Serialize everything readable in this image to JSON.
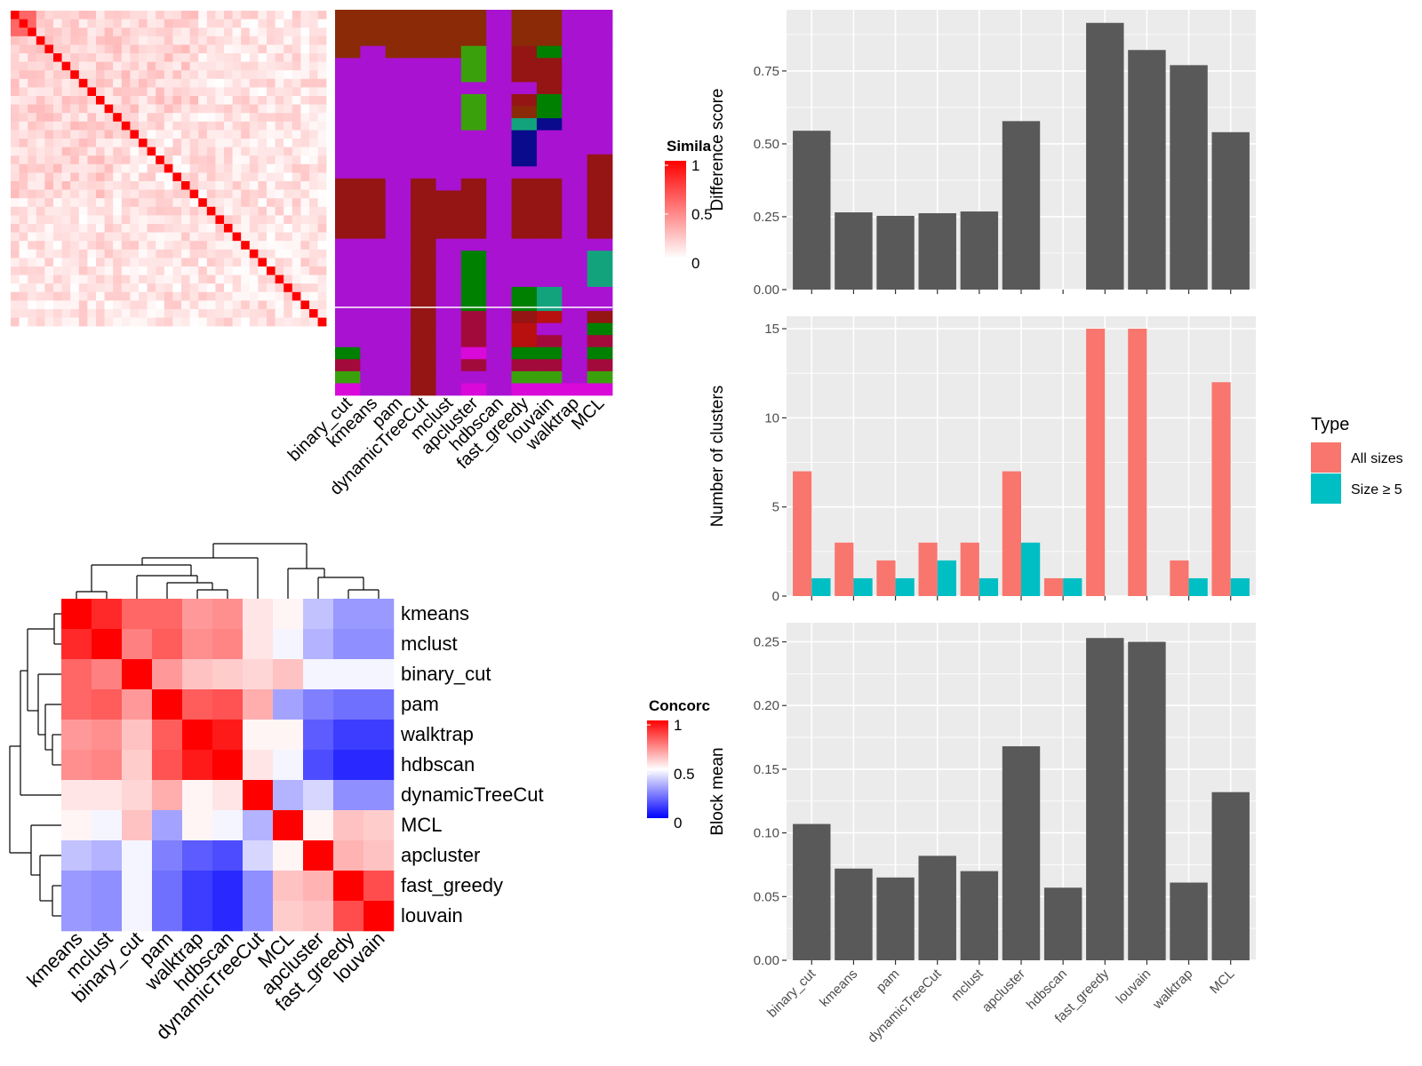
{
  "colors": {
    "panel_bg": "#ebebeb",
    "grid": "#ffffff",
    "bar_gray": "#595959",
    "all_sizes": "#f8766d",
    "size_ge5": "#00bfc4",
    "sim_high": "#ff0000",
    "conc_high": "#ff0000",
    "conc_mid": "#ffffff",
    "conc_low": "#0000ff",
    "cat_purple": "#a912d1",
    "cat_brown": "#8b2a06",
    "cat_darkred": "#951414",
    "cat_green": "#008000",
    "cat_lightgreen": "#3aa10d",
    "cat_teal": "#13a37c",
    "cat_navy": "#0a0a8c",
    "cat_crimson": "#a30a3c",
    "cat_red": "#b80f0f",
    "cat_magenta": "#d909d9"
  },
  "chart_data": [
    {
      "id": "similarity-heatmap",
      "type": "heatmap",
      "n": 37,
      "legend_title": "Simila",
      "legend_ticks": [
        "1",
        "0.5",
        "0"
      ],
      "legend_range": [
        0,
        1
      ]
    },
    {
      "id": "membership-heatmap",
      "type": "heatmap",
      "columns": [
        "binary_cut",
        "kmeans",
        "pam",
        "dynamicTreeCut",
        "mclust",
        "apcluster",
        "hdbscan",
        "fast_greedy",
        "louvain",
        "walktrap",
        "MCL"
      ],
      "cell_colors": [
        [
          "cat_brown",
          "cat_brown",
          "cat_brown",
          "cat_brown",
          "cat_brown",
          "cat_brown",
          "cat_purple",
          "cat_brown",
          "cat_brown",
          "cat_purple",
          "cat_purple"
        ],
        [
          "cat_brown",
          "cat_brown",
          "cat_brown",
          "cat_brown",
          "cat_brown",
          "cat_brown",
          "cat_purple",
          "cat_brown",
          "cat_brown",
          "cat_purple",
          "cat_purple"
        ],
        [
          "cat_brown",
          "cat_brown",
          "cat_brown",
          "cat_brown",
          "cat_brown",
          "cat_brown",
          "cat_purple",
          "cat_brown",
          "cat_brown",
          "cat_purple",
          "cat_purple"
        ],
        [
          "cat_brown",
          "cat_purple",
          "cat_brown",
          "cat_brown",
          "cat_brown",
          "cat_lightgreen",
          "cat_purple",
          "cat_darkred",
          "cat_green",
          "cat_purple",
          "cat_purple"
        ],
        [
          "cat_purple",
          "cat_purple",
          "cat_purple",
          "cat_purple",
          "cat_purple",
          "cat_lightgreen",
          "cat_purple",
          "cat_darkred",
          "cat_darkred",
          "cat_purple",
          "cat_purple"
        ],
        [
          "cat_purple",
          "cat_purple",
          "cat_purple",
          "cat_purple",
          "cat_purple",
          "cat_lightgreen",
          "cat_purple",
          "cat_darkred",
          "cat_darkred",
          "cat_purple",
          "cat_purple"
        ],
        [
          "cat_purple",
          "cat_purple",
          "cat_purple",
          "cat_purple",
          "cat_purple",
          "cat_purple",
          "cat_purple",
          "cat_purple",
          "cat_darkred",
          "cat_purple",
          "cat_purple"
        ],
        [
          "cat_purple",
          "cat_purple",
          "cat_purple",
          "cat_purple",
          "cat_purple",
          "cat_lightgreen",
          "cat_purple",
          "cat_darkred",
          "cat_green",
          "cat_purple",
          "cat_purple"
        ],
        [
          "cat_purple",
          "cat_purple",
          "cat_purple",
          "cat_purple",
          "cat_purple",
          "cat_lightgreen",
          "cat_purple",
          "cat_brown",
          "cat_green",
          "cat_purple",
          "cat_purple"
        ],
        [
          "cat_purple",
          "cat_purple",
          "cat_purple",
          "cat_purple",
          "cat_purple",
          "cat_lightgreen",
          "cat_purple",
          "cat_teal",
          "cat_navy",
          "cat_purple",
          "cat_purple"
        ],
        [
          "cat_purple",
          "cat_purple",
          "cat_purple",
          "cat_purple",
          "cat_purple",
          "cat_purple",
          "cat_purple",
          "cat_navy",
          "cat_purple",
          "cat_purple",
          "cat_purple"
        ],
        [
          "cat_purple",
          "cat_purple",
          "cat_purple",
          "cat_purple",
          "cat_purple",
          "cat_purple",
          "cat_purple",
          "cat_navy",
          "cat_purple",
          "cat_purple",
          "cat_purple"
        ],
        [
          "cat_purple",
          "cat_purple",
          "cat_purple",
          "cat_purple",
          "cat_purple",
          "cat_purple",
          "cat_purple",
          "cat_navy",
          "cat_purple",
          "cat_purple",
          "cat_darkred"
        ],
        [
          "cat_purple",
          "cat_purple",
          "cat_purple",
          "cat_purple",
          "cat_purple",
          "cat_purple",
          "cat_purple",
          "cat_purple",
          "cat_purple",
          "cat_purple",
          "cat_darkred"
        ],
        [
          "cat_darkred",
          "cat_darkred",
          "cat_purple",
          "cat_darkred",
          "cat_purple",
          "cat_darkred",
          "cat_purple",
          "cat_darkred",
          "cat_darkred",
          "cat_purple",
          "cat_darkred"
        ],
        [
          "cat_darkred",
          "cat_darkred",
          "cat_purple",
          "cat_darkred",
          "cat_darkred",
          "cat_darkred",
          "cat_purple",
          "cat_darkred",
          "cat_darkred",
          "cat_purple",
          "cat_darkred"
        ],
        [
          "cat_darkred",
          "cat_darkred",
          "cat_purple",
          "cat_darkred",
          "cat_darkred",
          "cat_darkred",
          "cat_purple",
          "cat_darkred",
          "cat_darkred",
          "cat_purple",
          "cat_darkred"
        ],
        [
          "cat_darkred",
          "cat_darkred",
          "cat_purple",
          "cat_darkred",
          "cat_darkred",
          "cat_darkred",
          "cat_purple",
          "cat_darkred",
          "cat_darkred",
          "cat_purple",
          "cat_darkred"
        ],
        [
          "cat_darkred",
          "cat_darkred",
          "cat_purple",
          "cat_darkred",
          "cat_darkred",
          "cat_darkred",
          "cat_purple",
          "cat_darkred",
          "cat_darkred",
          "cat_purple",
          "cat_darkred"
        ],
        [
          "cat_purple",
          "cat_purple",
          "cat_purple",
          "cat_darkred",
          "cat_purple",
          "cat_purple",
          "cat_purple",
          "cat_purple",
          "cat_purple",
          "cat_purple",
          "cat_purple"
        ],
        [
          "cat_purple",
          "cat_purple",
          "cat_purple",
          "cat_darkred",
          "cat_purple",
          "cat_green",
          "cat_purple",
          "cat_purple",
          "cat_purple",
          "cat_purple",
          "cat_teal"
        ],
        [
          "cat_purple",
          "cat_purple",
          "cat_purple",
          "cat_darkred",
          "cat_purple",
          "cat_green",
          "cat_purple",
          "cat_purple",
          "cat_purple",
          "cat_purple",
          "cat_teal"
        ],
        [
          "cat_purple",
          "cat_purple",
          "cat_purple",
          "cat_darkred",
          "cat_purple",
          "cat_green",
          "cat_purple",
          "cat_purple",
          "cat_purple",
          "cat_purple",
          "cat_teal"
        ],
        [
          "cat_purple",
          "cat_purple",
          "cat_purple",
          "cat_darkred",
          "cat_purple",
          "cat_green",
          "cat_purple",
          "cat_green",
          "cat_teal",
          "cat_purple",
          "cat_purple"
        ],
        [
          "cat_purple",
          "cat_purple",
          "cat_purple",
          "cat_darkred",
          "cat_purple",
          "cat_green",
          "cat_purple",
          "cat_green",
          "cat_teal",
          "cat_purple",
          "cat_purple"
        ],
        [
          "cat_purple",
          "cat_purple",
          "cat_purple",
          "cat_darkred",
          "cat_purple",
          "cat_crimson",
          "cat_purple",
          "cat_darkred",
          "cat_red",
          "cat_purple",
          "cat_darkred"
        ],
        [
          "cat_purple",
          "cat_purple",
          "cat_purple",
          "cat_darkred",
          "cat_purple",
          "cat_crimson",
          "cat_purple",
          "cat_red",
          "cat_purple",
          "cat_purple",
          "cat_green"
        ],
        [
          "cat_purple",
          "cat_purple",
          "cat_purple",
          "cat_darkred",
          "cat_purple",
          "cat_crimson",
          "cat_purple",
          "cat_red",
          "cat_crimson",
          "cat_purple",
          "cat_crimson"
        ],
        [
          "cat_green",
          "cat_purple",
          "cat_purple",
          "cat_darkred",
          "cat_purple",
          "cat_magenta",
          "cat_purple",
          "cat_green",
          "cat_green",
          "cat_purple",
          "cat_green"
        ],
        [
          "cat_crimson",
          "cat_purple",
          "cat_purple",
          "cat_darkred",
          "cat_purple",
          "cat_crimson",
          "cat_purple",
          "cat_crimson",
          "cat_crimson",
          "cat_purple",
          "cat_crimson"
        ],
        [
          "cat_lightgreen",
          "cat_purple",
          "cat_purple",
          "cat_darkred",
          "cat_purple",
          "cat_purple",
          "cat_purple",
          "cat_lightgreen",
          "cat_lightgreen",
          "cat_purple",
          "cat_lightgreen"
        ],
        [
          "cat_magenta",
          "cat_purple",
          "cat_purple",
          "cat_darkred",
          "cat_purple",
          "cat_magenta",
          "cat_purple",
          "cat_magenta",
          "cat_magenta",
          "cat_magenta",
          "cat_magenta"
        ]
      ]
    },
    {
      "id": "concordance-heatmap",
      "type": "heatmap",
      "rows": [
        "kmeans",
        "mclust",
        "binary_cut",
        "pam",
        "walktrap",
        "hdbscan",
        "dynamicTreeCut",
        "MCL",
        "apcluster",
        "fast_greedy",
        "louvain"
      ],
      "columns": [
        "kmeans",
        "mclust",
        "binary_cut",
        "pam",
        "walktrap",
        "hdbscan",
        "dynamicTreeCut",
        "MCL",
        "apcluster",
        "fast_greedy",
        "louvain"
      ],
      "values": [
        [
          1.0,
          0.92,
          0.8,
          0.8,
          0.7,
          0.72,
          0.55,
          0.52,
          0.38,
          0.3,
          0.3
        ],
        [
          0.92,
          1.0,
          0.75,
          0.82,
          0.72,
          0.74,
          0.55,
          0.48,
          0.35,
          0.28,
          0.28
        ],
        [
          0.8,
          0.75,
          1.0,
          0.7,
          0.62,
          0.6,
          0.58,
          0.62,
          0.48,
          0.48,
          0.48
        ],
        [
          0.8,
          0.82,
          0.7,
          1.0,
          0.82,
          0.84,
          0.66,
          0.32,
          0.25,
          0.22,
          0.22
        ],
        [
          0.7,
          0.72,
          0.62,
          0.82,
          1.0,
          0.95,
          0.52,
          0.52,
          0.18,
          0.12,
          0.12
        ],
        [
          0.72,
          0.74,
          0.6,
          0.84,
          0.95,
          1.0,
          0.55,
          0.48,
          0.15,
          0.08,
          0.08
        ],
        [
          0.55,
          0.55,
          0.58,
          0.66,
          0.52,
          0.55,
          1.0,
          0.35,
          0.42,
          0.28,
          0.28
        ],
        [
          0.52,
          0.48,
          0.62,
          0.32,
          0.52,
          0.48,
          0.35,
          1.0,
          0.52,
          0.62,
          0.6
        ],
        [
          0.38,
          0.35,
          0.48,
          0.25,
          0.18,
          0.15,
          0.42,
          0.52,
          1.0,
          0.65,
          0.62
        ],
        [
          0.3,
          0.28,
          0.48,
          0.22,
          0.12,
          0.08,
          0.28,
          0.62,
          0.65,
          1.0,
          0.85
        ],
        [
          0.3,
          0.28,
          0.48,
          0.22,
          0.12,
          0.08,
          0.28,
          0.6,
          0.62,
          0.85,
          1.0
        ]
      ],
      "legend_title": "Concorc",
      "legend_ticks": [
        "1",
        "0.5",
        "0"
      ],
      "legend_range": [
        0,
        1
      ]
    },
    {
      "id": "difference-score",
      "type": "bar",
      "categories": [
        "binary_cut",
        "kmeans",
        "pam",
        "dynamicTreeCut",
        "mclust",
        "apcluster",
        "hdbscan",
        "fast_greedy",
        "louvain",
        "walktrap",
        "MCL"
      ],
      "values": [
        0.545,
        0.265,
        0.253,
        0.262,
        0.268,
        0.578,
        0.0,
        0.915,
        0.822,
        0.77,
        0.54
      ],
      "ylabel": "Difference score",
      "yticks": [
        "0.00",
        "0.25",
        "0.50",
        "0.75"
      ],
      "ylim": [
        0,
        0.96
      ]
    },
    {
      "id": "number-of-clusters",
      "type": "bar",
      "categories": [
        "binary_cut",
        "kmeans",
        "pam",
        "dynamicTreeCut",
        "mclust",
        "apcluster",
        "hdbscan",
        "fast_greedy",
        "louvain",
        "walktrap",
        "MCL"
      ],
      "series": [
        {
          "name": "All sizes",
          "values": [
            7,
            3,
            2,
            3,
            3,
            7,
            1,
            15,
            15,
            2,
            12
          ]
        },
        {
          "name": "Size ≥ 5",
          "values": [
            1,
            1,
            1,
            2,
            1,
            3,
            1,
            0,
            0,
            1,
            1
          ]
        }
      ],
      "ylabel": "Number of clusters",
      "yticks": [
        "0",
        "5",
        "10",
        "15"
      ],
      "ylim": [
        0,
        15.7
      ],
      "legend_title": "Type",
      "legend_position": "right"
    },
    {
      "id": "block-mean",
      "type": "bar",
      "categories": [
        "binary_cut",
        "kmeans",
        "pam",
        "dynamicTreeCut",
        "mclust",
        "apcluster",
        "hdbscan",
        "fast_greedy",
        "louvain",
        "walktrap",
        "MCL"
      ],
      "values": [
        0.107,
        0.072,
        0.065,
        0.082,
        0.07,
        0.168,
        0.057,
        0.253,
        0.25,
        0.061,
        0.132
      ],
      "ylabel": "Block mean",
      "yticks": [
        "0.00",
        "0.05",
        "0.10",
        "0.15",
        "0.20",
        "0.25"
      ],
      "ylim": [
        0,
        0.265
      ]
    }
  ]
}
